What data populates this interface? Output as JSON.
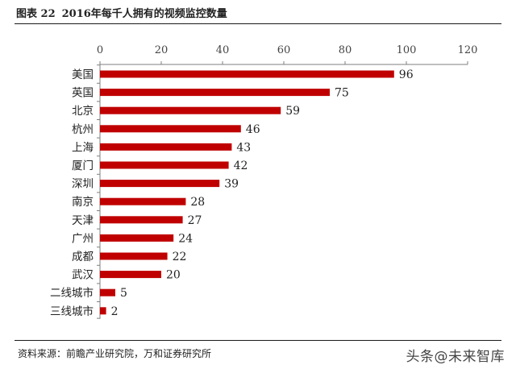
{
  "header": {
    "figure_no": "图表 22",
    "title": "2016年每千人拥有的视频监控数量"
  },
  "footer": {
    "source": "资料来源：前瞻产业研究院，万和证券研究所",
    "watermark": "头条@未来智库"
  },
  "colors": {
    "bar": "#c00000",
    "axis": "#7f7f7f",
    "text": "#222222"
  },
  "chart_data": {
    "type": "bar",
    "orientation": "horizontal",
    "title": "2016年每千人拥有的视频监控数量",
    "categories": [
      "美国",
      "英国",
      "北京",
      "杭州",
      "上海",
      "厦门",
      "深圳",
      "南京",
      "天津",
      "广州",
      "成都",
      "武汉",
      "二线城市",
      "三线城市"
    ],
    "values": [
      96,
      75,
      59,
      46,
      43,
      42,
      39,
      28,
      27,
      24,
      22,
      20,
      5,
      2
    ],
    "xlim": [
      0,
      120
    ],
    "xticks": [
      "0",
      "20",
      "40",
      "60",
      "80",
      "100",
      "120"
    ],
    "axis_position": "top",
    "grid": false,
    "data_labels": true
  }
}
